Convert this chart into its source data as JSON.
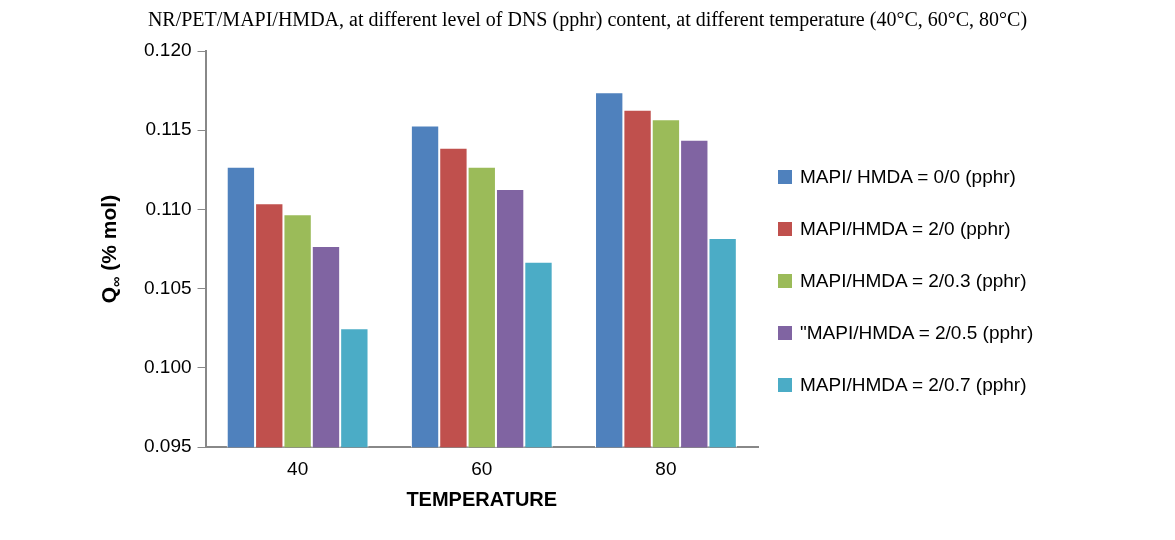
{
  "chart_data": {
    "type": "bar",
    "title": "NR/PET/MAPI/HMDA, at different level of DNS (pphr) content, at different temperature (40°C, 60°C, 80°C)",
    "xlabel": "TEMPERATURE",
    "ylabel": "Q$_{∞}$ (% mol)",
    "categories": [
      "40",
      "60",
      "80"
    ],
    "series": [
      {
        "name": "MAPI/ HMDA = 0/0 (pphr)",
        "color": "#4f81bd",
        "values": [
          0.1127,
          0.1153,
          0.1174
        ]
      },
      {
        "name": "MAPI/HMDA = 2/0 (pphr)",
        "color": "#c0504d",
        "values": [
          0.1104,
          0.1139,
          0.1163
        ]
      },
      {
        "name": "MAPI/HMDA = 2/0.3 (pphr)",
        "color": "#9bbb59",
        "values": [
          0.1097,
          0.1127,
          0.1157
        ]
      },
      {
        "name": "\"MAPI/HMDA = 2/0.5 (pphr)",
        "color": "#8064a2",
        "values": [
          0.1077,
          0.1113,
          0.1144
        ]
      },
      {
        "name": "MAPI/HMDA = 2/0.7 (pphr)",
        "color": "#4bacc6",
        "values": [
          0.1025,
          0.1067,
          0.1082
        ]
      }
    ],
    "ylim": [
      0.095,
      0.12
    ],
    "yticks": [
      {
        "value": 0.095,
        "label": "0.095"
      },
      {
        "value": 0.1,
        "label": "0.100"
      },
      {
        "value": 0.105,
        "label": "0.105"
      },
      {
        "value": 0.11,
        "label": "0.110"
      },
      {
        "value": 0.115,
        "label": "0.115"
      },
      {
        "value": 0.12,
        "label": "0.120"
      }
    ],
    "grid": false,
    "legend": "right"
  }
}
